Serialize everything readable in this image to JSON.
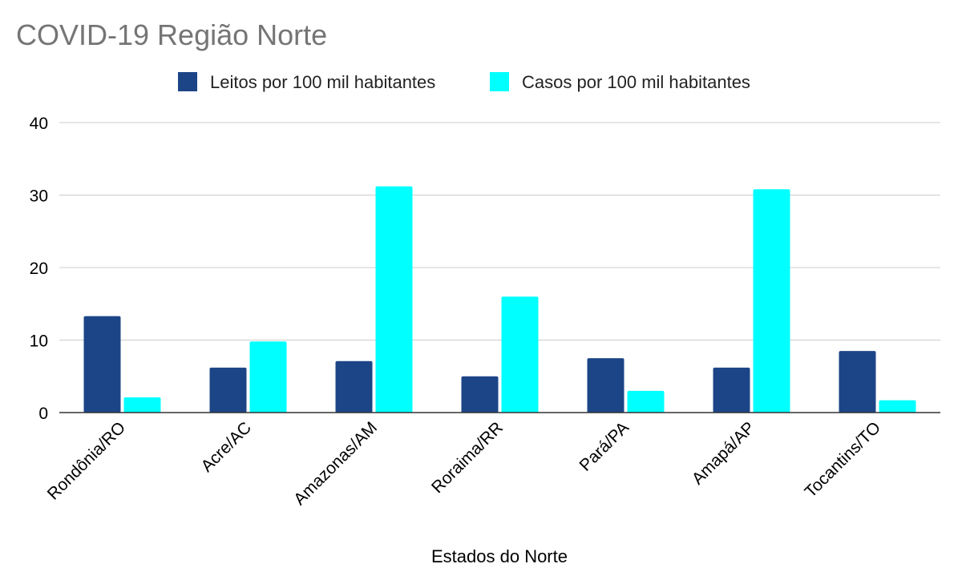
{
  "chart_data": {
    "type": "bar",
    "title": "COVID-19 Região Norte",
    "xlabel": "Estados do Norte",
    "ylabel": "",
    "ylim": [
      0,
      40
    ],
    "yticks": [
      "0",
      "10",
      "20",
      "30",
      "40"
    ],
    "grid": true,
    "legend_position": "top",
    "categories": [
      "Rondônia/RO",
      "Acre/AC",
      "Amazonas/AM",
      "Roraima/RR",
      "Pará/PA",
      "Amapá/AP",
      "Tocantins/TO"
    ],
    "series": [
      {
        "name": "Leitos por 100 mil habitantes",
        "color": "#1c4587",
        "values": [
          13.3,
          6.2,
          7.1,
          5.0,
          7.5,
          6.2,
          8.5
        ]
      },
      {
        "name": "Casos por 100 mil habitantes",
        "color": "#00ffff",
        "values": [
          2.1,
          9.8,
          31.2,
          16.0,
          3.0,
          30.8,
          1.7
        ]
      }
    ]
  }
}
